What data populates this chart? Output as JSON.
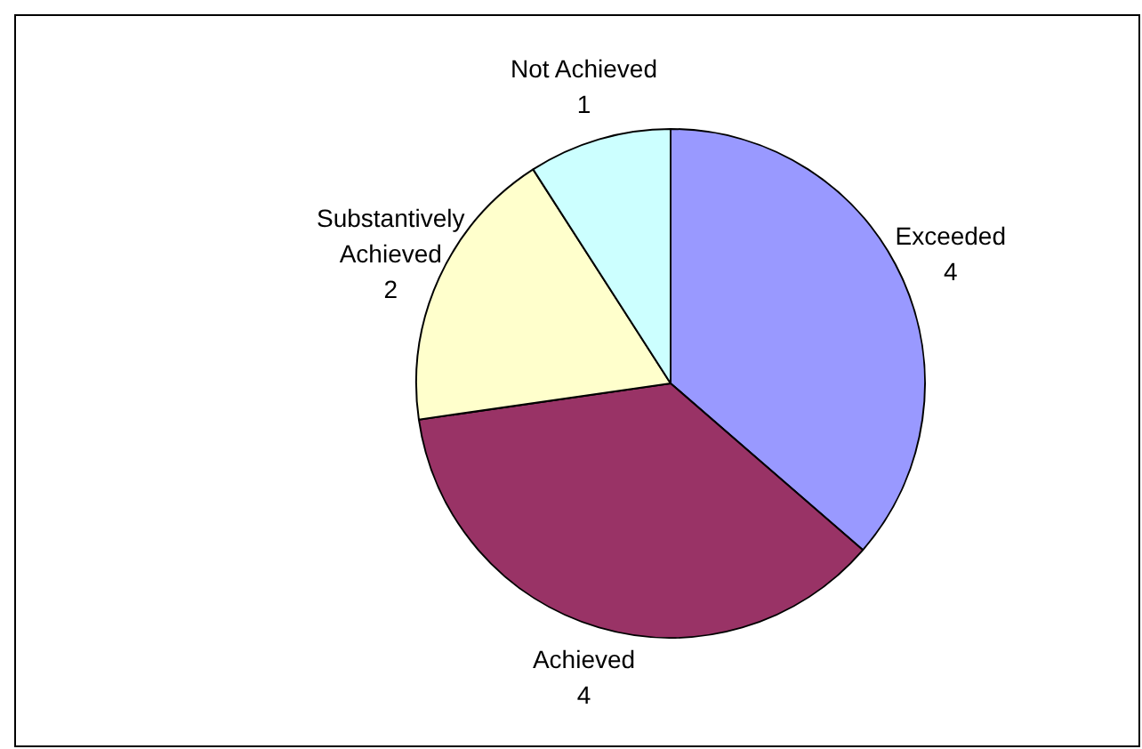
{
  "chart_data": {
    "type": "pie",
    "categories": [
      "Exceeded",
      "Achieved",
      "Substantively Achieved",
      "Not Achieved"
    ],
    "values": [
      4,
      4,
      2,
      1
    ],
    "colors": [
      "#9999ff",
      "#993366",
      "#ffffcc",
      "#ccffff"
    ],
    "data_labels": true,
    "legend": false
  }
}
